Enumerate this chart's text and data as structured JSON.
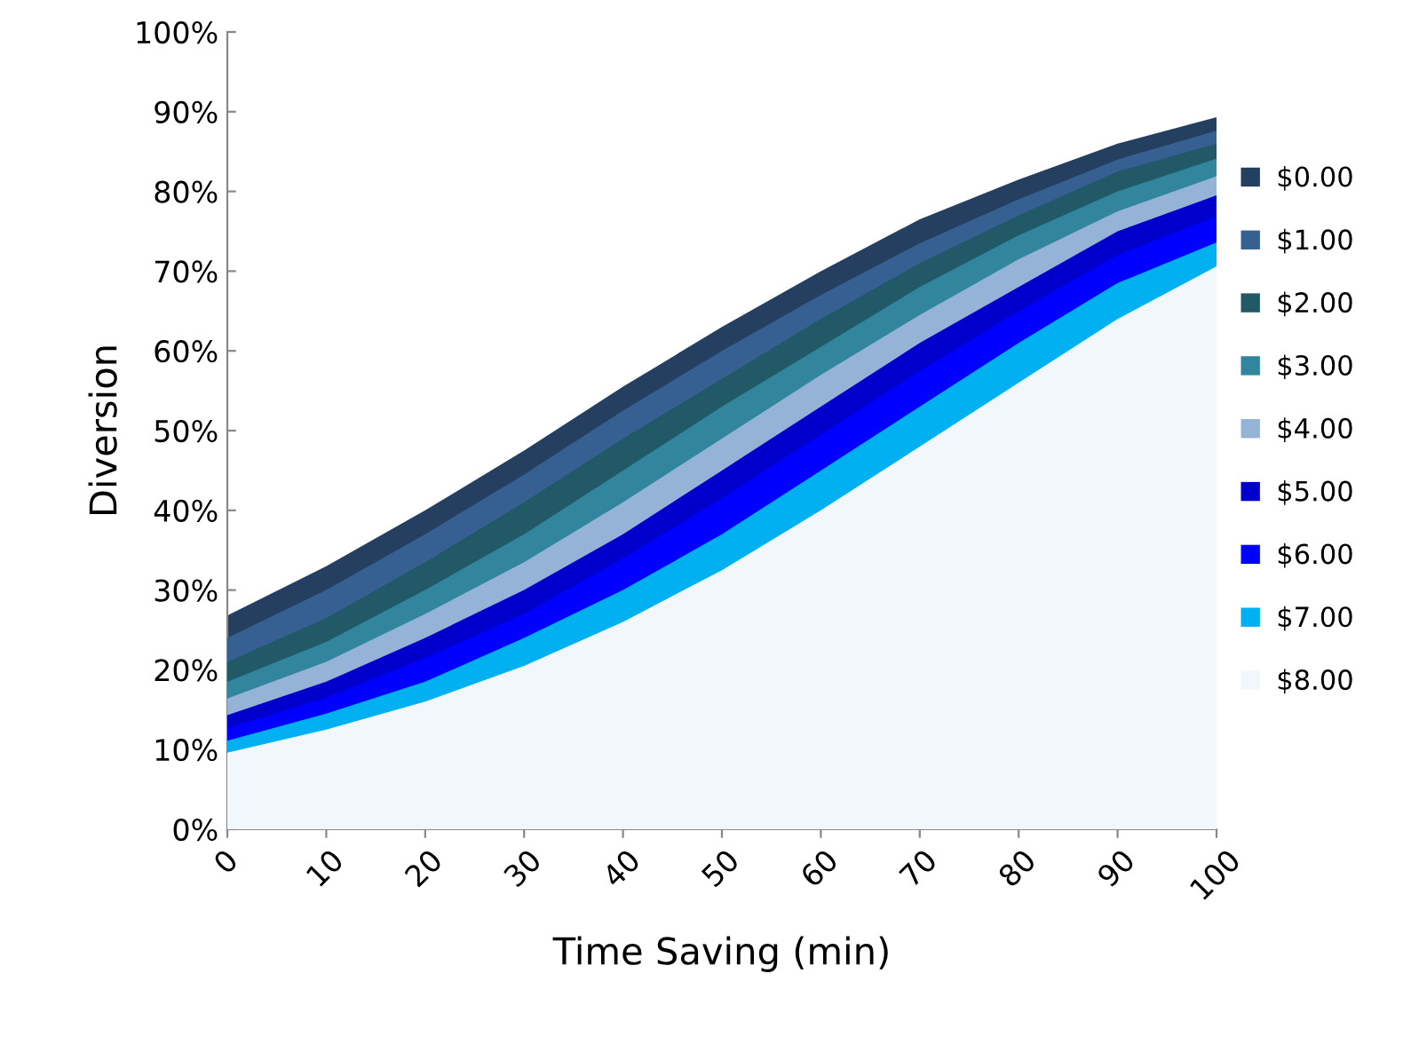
{
  "chart_data": {
    "type": "area",
    "xlabel": "Time Saving (min)",
    "ylabel": "Diversion",
    "categories": [
      "0",
      "10",
      "20",
      "30",
      "40",
      "50",
      "60",
      "70",
      "80",
      "90",
      "100"
    ],
    "ylim": [
      0,
      100
    ],
    "yticks": [
      {
        "value": 0,
        "label": "0%"
      },
      {
        "value": 10,
        "label": "10%"
      },
      {
        "value": 20,
        "label": "20%"
      },
      {
        "value": 30,
        "label": "30%"
      },
      {
        "value": 40,
        "label": "40%"
      },
      {
        "value": 50,
        "label": "50%"
      },
      {
        "value": 60,
        "label": "60%"
      },
      {
        "value": 70,
        "label": "70%"
      },
      {
        "value": 80,
        "label": "80%"
      },
      {
        "value": 90,
        "label": "90%"
      },
      {
        "value": 100,
        "label": "100%"
      }
    ],
    "grid": false,
    "legend": "right",
    "series": [
      {
        "name": "$0.00",
        "color": "#243f60",
        "values": [
          26.8,
          33,
          40,
          47.5,
          55.5,
          63,
          70,
          76.5,
          81.5,
          86,
          89.3
        ]
      },
      {
        "name": "$1.00",
        "color": "#366092",
        "values": [
          24.0,
          30,
          37,
          44.5,
          52.5,
          60,
          67,
          73.5,
          79,
          84,
          87.6
        ]
      },
      {
        "name": "$2.00",
        "color": "#215967",
        "values": [
          21.0,
          26.5,
          33.5,
          41,
          49,
          56.5,
          64,
          71,
          77,
          82.5,
          86.0
        ]
      },
      {
        "name": "$3.00",
        "color": "#31859c",
        "values": [
          18.5,
          23.5,
          30,
          37,
          45,
          53,
          60.5,
          68,
          74.5,
          80,
          84.1
        ]
      },
      {
        "name": "$4.00",
        "color": "#95b3d7",
        "values": [
          16.4,
          21,
          27,
          33.5,
          41,
          49,
          57,
          64.5,
          71.5,
          77.5,
          81.9
        ]
      },
      {
        "name": "$5.00",
        "color": "#0000cc",
        "values": [
          14.3,
          18.5,
          24,
          30,
          37,
          45,
          53,
          61,
          68,
          75,
          79.5
        ]
      },
      {
        "name": "$6.00",
        "color": "#0000ff",
        "values": [
          12.7,
          16.5,
          21.5,
          27,
          34,
          41.5,
          49.5,
          57.5,
          65,
          72,
          76.9
        ]
      },
      {
        "name": "$7.00",
        "color": "#00b0f0",
        "values": [
          11.1,
          14.5,
          18.5,
          24,
          30,
          37,
          45,
          53,
          61,
          68.5,
          73.6
        ]
      },
      {
        "name": "$8.00",
        "color": "#f2f7fb",
        "values": [
          9.6,
          12.5,
          16,
          20.5,
          26,
          32.5,
          40,
          48,
          56,
          64,
          70.6
        ]
      }
    ]
  }
}
